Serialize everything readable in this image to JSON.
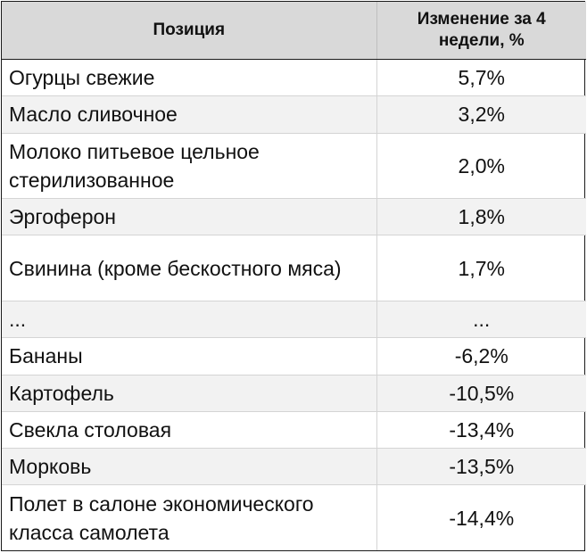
{
  "table": {
    "headers": [
      "Позиция",
      "Изменение за 4 недели, %"
    ],
    "rows": [
      {
        "position": "Огурцы свежие",
        "change": "5,7%"
      },
      {
        "position": "Масло сливочное",
        "change": "3,2%"
      },
      {
        "position": "Молоко питьевое цельное стерилизованное",
        "change": "2,0%"
      },
      {
        "position": "Эргоферон",
        "change": "1,8%"
      },
      {
        "position": "Свинина (кроме бескостного мяса)",
        "change": "1,7%"
      },
      {
        "position": "...",
        "change": "..."
      },
      {
        "position": "Бананы",
        "change": "-6,2%"
      },
      {
        "position": "Картофель",
        "change": "-10,5%"
      },
      {
        "position": "Свекла столовая",
        "change": "-13,4%"
      },
      {
        "position": "Морковь",
        "change": "-13,5%"
      },
      {
        "position": "Полет в салоне экономического класса самолета",
        "change": "-14,4%"
      }
    ]
  }
}
